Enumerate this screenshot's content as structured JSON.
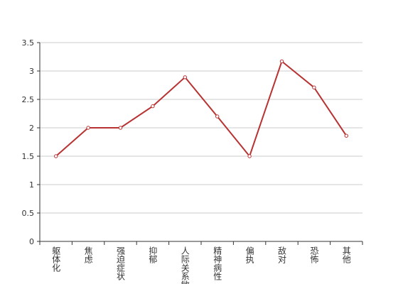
{
  "chart_data": {
    "type": "line",
    "categories": [
      "躯体化",
      "焦虑",
      "强迫症状",
      "抑郁",
      "人际关系敏感",
      "精神病性",
      "偏执",
      "敌对",
      "恐怖",
      "其他"
    ],
    "series": [
      {
        "color": "#b83232",
        "values": [
          1.5,
          2.0,
          2.0,
          2.38,
          2.89,
          2.2,
          1.5,
          3.17,
          2.71,
          1.86
        ]
      }
    ],
    "ylim": [
      0,
      3.5
    ],
    "yticks": [
      0,
      0.5,
      1,
      1.5,
      2,
      2.5,
      3,
      3.5
    ],
    "grid": true
  }
}
